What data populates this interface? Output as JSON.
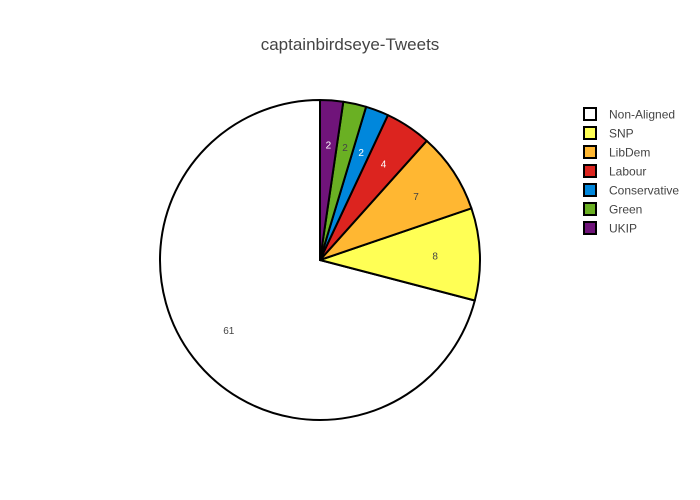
{
  "chart_data": {
    "type": "pie",
    "title": "captainbirdseye-Tweets",
    "slices": [
      {
        "label": "Non-Aligned",
        "value": 61,
        "color": "#ffffff",
        "label_color": "#444444"
      },
      {
        "label": "SNP",
        "value": 8,
        "color": "#ffff55",
        "label_color": "#444444"
      },
      {
        "label": "LibDem",
        "value": 7,
        "color": "#ffb732",
        "label_color": "#444444"
      },
      {
        "label": "Labour",
        "value": 4,
        "color": "#dc241f",
        "label_color": "#ffffff"
      },
      {
        "label": "Conservative",
        "value": 2,
        "color": "#0087dc",
        "label_color": "#ffffff"
      },
      {
        "label": "Green",
        "value": 2,
        "color": "#6ab023",
        "label_color": "#444444"
      },
      {
        "label": "UKIP",
        "value": 2,
        "color": "#70147a",
        "label_color": "#ffffff"
      }
    ],
    "direction": "counterclockwise",
    "legend_position": "top-right",
    "slice_outline": "#000000"
  }
}
